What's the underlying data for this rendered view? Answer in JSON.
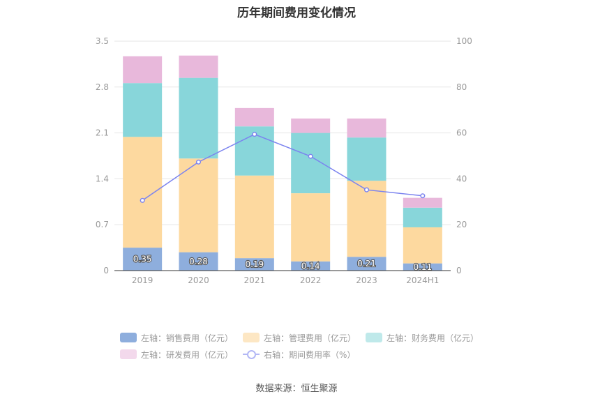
{
  "title": "历年期间费用变化情况",
  "source": "数据来源：恒生聚源",
  "chart_data": {
    "type": "bar",
    "stacked": true,
    "categories": [
      "2019",
      "2020",
      "2021",
      "2022",
      "2023",
      "2024H1"
    ],
    "left_axis": {
      "min": 0,
      "max": 3.5,
      "ticks": [
        "0",
        "0.7",
        "1.4",
        "2.1",
        "2.8",
        "3.5"
      ]
    },
    "right_axis": {
      "min": 0,
      "max": 100,
      "ticks": [
        "0",
        "20",
        "40",
        "60",
        "80",
        "100"
      ]
    },
    "series": [
      {
        "name": "左轴：销售费用（亿元）",
        "axis": "left",
        "color": "#8eaedd",
        "values": [
          0.35,
          0.28,
          0.19,
          0.14,
          0.21,
          0.11
        ],
        "labels": [
          "0.35",
          "0.28",
          "0.19",
          "0.14",
          "0.21",
          "0.11"
        ]
      },
      {
        "name": "左轴：管理费用（亿元）",
        "axis": "left",
        "color": "#fdd99f",
        "values": [
          1.69,
          1.43,
          1.26,
          1.04,
          1.16,
          0.55
        ]
      },
      {
        "name": "左轴：财务费用（亿元）",
        "axis": "left",
        "color": "#88d6da",
        "values": [
          0.82,
          1.23,
          0.75,
          0.92,
          0.66,
          0.3
        ]
      },
      {
        "name": "左轴：研发费用（亿元）",
        "axis": "left",
        "color": "#e8b8db",
        "values": [
          0.41,
          0.34,
          0.28,
          0.22,
          0.29,
          0.15
        ]
      },
      {
        "name": "右轴：期间费用率（%）",
        "axis": "right",
        "type": "line",
        "color": "#7b83ef",
        "values": [
          30.6,
          47.3,
          59.4,
          49.8,
          35.2,
          32.6
        ]
      }
    ],
    "legend_colors": {
      "销售": "#8eaedd",
      "管理": "#fde7c4",
      "财务": "#bfe9ea",
      "研发": "#f3d9ec"
    }
  }
}
